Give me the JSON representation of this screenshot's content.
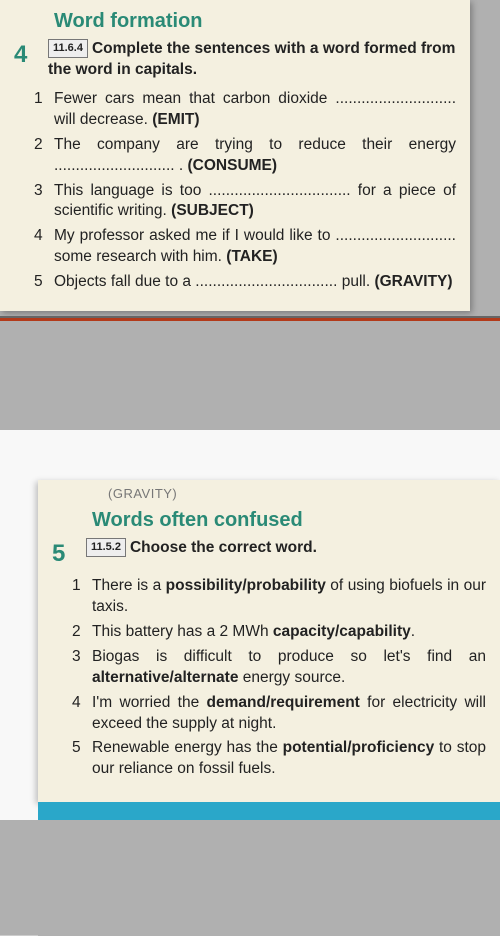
{
  "ex4": {
    "title": "Word formation",
    "number": "4",
    "ref": "11.6.4",
    "instruction": "Complete the sentences with a word formed from the word in capitals.",
    "items": [
      {
        "n": "1",
        "text": "Fewer cars mean that carbon dioxide ............................ will decrease. (EMIT)"
      },
      {
        "n": "2",
        "text": "The company are trying to reduce their energy ............................ . (CONSUME)"
      },
      {
        "n": "3",
        "text": "This language is too ................................. for a piece of scientific writing. (SUBJECT)"
      },
      {
        "n": "4",
        "text": "My professor asked me if I would like to ............................ some research with him. (TAKE)"
      },
      {
        "n": "5",
        "text": "Objects fall due to a ................................. pull. (GRAVITY)"
      }
    ]
  },
  "ex5": {
    "cutoff": "(GRAVITY)",
    "title": "Words often confused",
    "number": "5",
    "ref": "11.5.2",
    "instruction": "Choose the correct word.",
    "items": [
      {
        "n": "1",
        "text": "There is a <b>possibility/probability</b> of using biofuels in our taxis."
      },
      {
        "n": "2",
        "text": "This battery has a 2 MWh <b>capacity/capability</b>."
      },
      {
        "n": "3",
        "text": "Biogas is difficult to produce so let's find an <b>alternative/alternate</b> energy source."
      },
      {
        "n": "4",
        "text": "I'm worried the <b>demand/requirement</b> for electricity will exceed the supply at night."
      },
      {
        "n": "5",
        "text": "Renewable energy has the <b>potential/proficiency</b> to stop our reliance on fossil fuels."
      }
    ]
  }
}
